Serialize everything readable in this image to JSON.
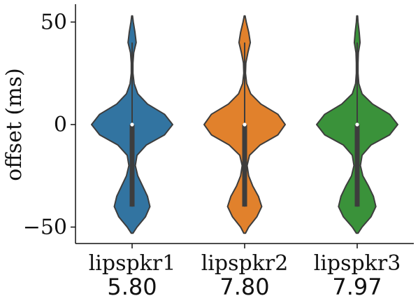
{
  "chart_data": {
    "type": "violin",
    "ylabel": "offset (ms)",
    "ylim": [
      -58,
      58
    ],
    "yticks": [
      50,
      0,
      -50
    ],
    "ytick_labels": [
      "50",
      "0",
      "−50"
    ],
    "grid": false,
    "categories": [
      "lipspkr1",
      "lipspkr2",
      "lipspkr3"
    ],
    "scores": [
      "5.80",
      "7.80",
      "7.97"
    ],
    "series": [
      {
        "category": "lipspkr1",
        "color": "#3274a1",
        "range": [
          -53,
          53
        ],
        "median": 0,
        "quartiles": [
          -40,
          0
        ],
        "whiskers": [
          -40,
          40
        ],
        "profile": [
          [
            -53,
            0.02
          ],
          [
            -50,
            0.12
          ],
          [
            -45,
            0.33
          ],
          [
            -40,
            0.44
          ],
          [
            -35,
            0.38
          ],
          [
            -30,
            0.26
          ],
          [
            -25,
            0.14
          ],
          [
            -20,
            0.08
          ],
          [
            -15,
            0.12
          ],
          [
            -10,
            0.35
          ],
          [
            -5,
            0.8
          ],
          [
            0,
            1.0
          ],
          [
            5,
            0.8
          ],
          [
            10,
            0.38
          ],
          [
            15,
            0.14
          ],
          [
            20,
            0.05
          ],
          [
            25,
            0.02
          ],
          [
            30,
            0.02
          ],
          [
            35,
            0.04
          ],
          [
            40,
            0.1
          ],
          [
            45,
            0.07
          ],
          [
            50,
            0.03
          ],
          [
            53,
            0.01
          ]
        ]
      },
      {
        "category": "lipspkr2",
        "color": "#e1812c",
        "range": [
          -53,
          53
        ],
        "median": 0,
        "quartiles": [
          -40,
          0
        ],
        "whiskers": [
          -40,
          40
        ],
        "profile": [
          [
            -53,
            0.02
          ],
          [
            -50,
            0.1
          ],
          [
            -45,
            0.3
          ],
          [
            -40,
            0.42
          ],
          [
            -35,
            0.34
          ],
          [
            -30,
            0.2
          ],
          [
            -25,
            0.1
          ],
          [
            -20,
            0.06
          ],
          [
            -15,
            0.12
          ],
          [
            -10,
            0.38
          ],
          [
            -5,
            0.82
          ],
          [
            0,
            1.0
          ],
          [
            5,
            0.82
          ],
          [
            10,
            0.4
          ],
          [
            15,
            0.15
          ],
          [
            20,
            0.05
          ],
          [
            25,
            0.02
          ],
          [
            30,
            0.03
          ],
          [
            35,
            0.08
          ],
          [
            40,
            0.14
          ],
          [
            45,
            0.1
          ],
          [
            50,
            0.04
          ],
          [
            53,
            0.01
          ]
        ]
      },
      {
        "category": "lipspkr3",
        "color": "#3a923a",
        "range": [
          -53,
          53
        ],
        "median": 0,
        "quartiles": [
          -40,
          0
        ],
        "whiskers": [
          -40,
          40
        ],
        "profile": [
          [
            -53,
            0.02
          ],
          [
            -50,
            0.12
          ],
          [
            -45,
            0.34
          ],
          [
            -40,
            0.46
          ],
          [
            -35,
            0.4
          ],
          [
            -30,
            0.28
          ],
          [
            -25,
            0.14
          ],
          [
            -20,
            0.08
          ],
          [
            -15,
            0.12
          ],
          [
            -10,
            0.34
          ],
          [
            -5,
            0.8
          ],
          [
            0,
            1.0
          ],
          [
            5,
            0.8
          ],
          [
            10,
            0.38
          ],
          [
            15,
            0.12
          ],
          [
            20,
            0.04
          ],
          [
            25,
            0.02
          ],
          [
            30,
            0.02
          ],
          [
            35,
            0.03
          ],
          [
            40,
            0.07
          ],
          [
            45,
            0.05
          ],
          [
            50,
            0.02
          ],
          [
            53,
            0.01
          ]
        ]
      }
    ]
  }
}
